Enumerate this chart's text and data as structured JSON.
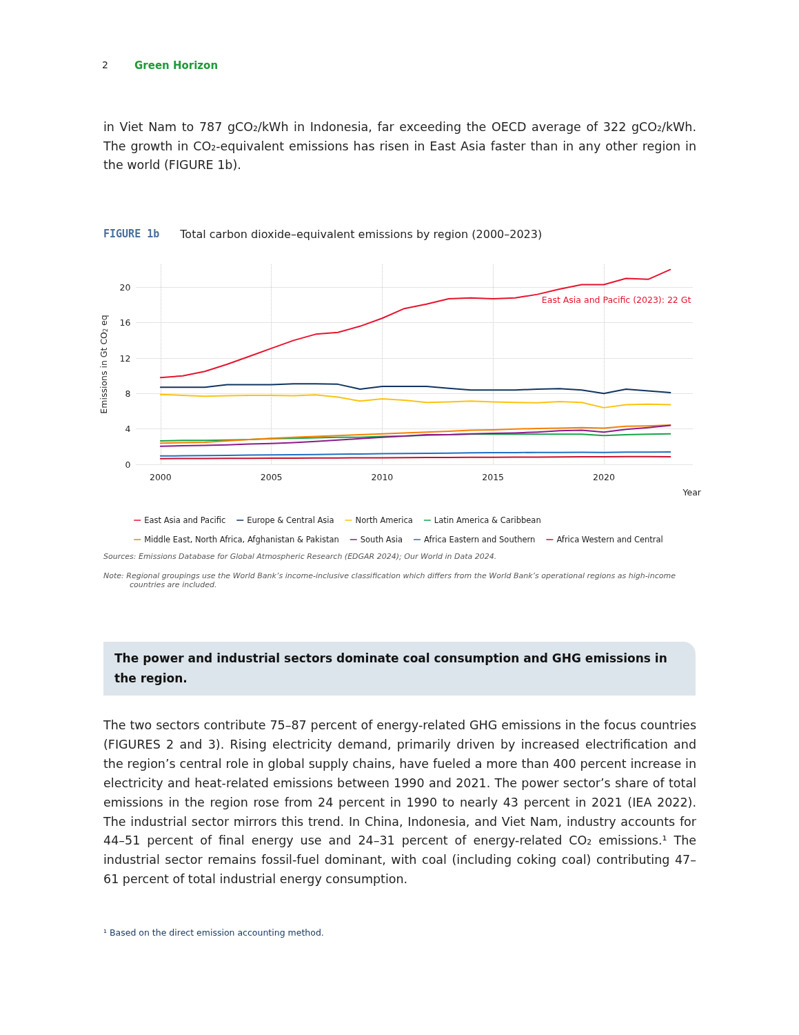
{
  "chart_data": {
    "type": "line",
    "subtitle": "FIGURE 1b",
    "title": "Total carbon dioxide–equivalent emissions by region (2000–2023)",
    "xlabel": "Year",
    "ylabel": "Emissions in Gt CO$_{2}$ eq",
    "x": [
      2000,
      2001,
      2002,
      2003,
      2004,
      2005,
      2006,
      2007,
      2008,
      2009,
      2010,
      2011,
      2012,
      2013,
      2014,
      2015,
      2016,
      2017,
      2018,
      2019,
      2020,
      2021,
      2022,
      2023
    ],
    "xlim": [
      1998.9,
      2024
    ],
    "xticks": [
      2000,
      2005,
      2010,
      2015,
      2020
    ],
    "ylim": [
      0,
      22.6
    ],
    "yticks": [
      0,
      4,
      8,
      12,
      16,
      20
    ],
    "grid": true,
    "legend": "bottom",
    "marker": "none",
    "line_style": "solid",
    "series": [
      {
        "name": "East Asia and Pacific",
        "color": "#e8112d",
        "values": [
          9.8,
          10.0,
          10.5,
          11.3,
          12.2,
          13.1,
          14.0,
          14.7,
          14.9,
          15.6,
          16.5,
          17.6,
          18.1,
          18.7,
          18.8,
          18.7,
          18.8,
          19.2,
          19.8,
          20.3,
          20.3,
          21.0,
          20.9,
          22
        ]
      },
      {
        "name": "Europe & Central Asia",
        "color": "#0f3460",
        "values": [
          8.7,
          8.7,
          8.7,
          9.0,
          9.0,
          9.0,
          9.1,
          9.1,
          9.05,
          8.5,
          8.8,
          8.8,
          8.8,
          8.6,
          8.4,
          8.4,
          8.4,
          8.5,
          8.55,
          8.4,
          8.0,
          8.5,
          8.3,
          8.1
        ]
      },
      {
        "name": "North America",
        "color": "#fdc20e",
        "values": [
          7.9,
          7.8,
          7.7,
          7.75,
          7.8,
          7.8,
          7.75,
          7.85,
          7.6,
          7.15,
          7.4,
          7.25,
          7.0,
          7.05,
          7.15,
          7.05,
          7.0,
          6.95,
          7.1,
          7.0,
          6.4,
          6.75,
          6.8,
          6.75
        ]
      },
      {
        "name": "Latin America & Caribbean",
        "color": "#16a34a",
        "values": [
          2.65,
          2.7,
          2.7,
          2.75,
          2.8,
          2.9,
          2.95,
          3.0,
          3.05,
          3.05,
          3.15,
          3.2,
          3.3,
          3.35,
          3.4,
          3.4,
          3.4,
          3.4,
          3.4,
          3.4,
          3.25,
          3.35,
          3.4,
          3.45
        ]
      },
      {
        "name": "Middle East, North Africa, Afghanistan & Pakistan",
        "color": "#f77f00",
        "values": [
          2.4,
          2.45,
          2.5,
          2.65,
          2.8,
          2.95,
          3.05,
          3.15,
          3.25,
          3.35,
          3.45,
          3.55,
          3.65,
          3.75,
          3.85,
          3.9,
          4.0,
          4.05,
          4.1,
          4.15,
          4.1,
          4.3,
          4.35,
          4.45
        ]
      },
      {
        "name": "South Asia",
        "color": "#8b1a8b",
        "values": [
          2.05,
          2.1,
          2.15,
          2.2,
          2.3,
          2.35,
          2.45,
          2.6,
          2.75,
          2.9,
          3.05,
          3.2,
          3.35,
          3.35,
          3.45,
          3.5,
          3.55,
          3.65,
          3.8,
          3.85,
          3.65,
          3.95,
          4.15,
          4.4
        ]
      },
      {
        "name": "Africa Eastern and Southern",
        "color": "#1f6fc5",
        "values": [
          0.95,
          0.97,
          1.0,
          1.02,
          1.05,
          1.08,
          1.1,
          1.12,
          1.15,
          1.17,
          1.2,
          1.22,
          1.25,
          1.27,
          1.3,
          1.32,
          1.33,
          1.34,
          1.35,
          1.36,
          1.35,
          1.38,
          1.39,
          1.4
        ]
      },
      {
        "name": "Africa Western and Central",
        "color": "#c8102e",
        "values": [
          0.65,
          0.66,
          0.67,
          0.68,
          0.69,
          0.7,
          0.71,
          0.72,
          0.73,
          0.74,
          0.75,
          0.76,
          0.77,
          0.78,
          0.79,
          0.8,
          0.81,
          0.82,
          0.83,
          0.85,
          0.86,
          0.87,
          0.87,
          0.86
        ]
      }
    ],
    "annotations": [
      "2",
      "Green Horizon",
      "in Viet Nam to 787 gCO₂/kWh in Indonesia, far exceeding the OECD average of 322 gCO₂/kWh. The growth in CO₂-equivalent emissions has risen in East Asia faster than in any other region in the world (FIGURE 1b).",
      {
        "text": "East Asia and Pacific (2023): 22 Gt",
        "x": 2023,
        "y": 22
      },
      "Sources:  Emissions Database for Global Atmospheric Research (EDGAR 2024); Our World in Data 2024.",
      "Note:  Regional groupings use the World Bank’s income-inclusive classification which differs from the World Bank’s operational regions as high-income countries are included.",
      "The power and industrial sectors dominate coal consumption and GHG emissions in the region.",
      "The two sectors contribute 75–87 percent of energy-related GHG emissions in the focus countries (FIGURES 2 and 3). Rising electricity demand, primarily driven by increased electrification and the region’s central role in global supply chains, have fueled a more than 400 percent increase in electricity and heat-related emissions between 1990 and 2021. The power sector’s share of total emissions in the region rose from 24 percent in 1990 to nearly 43 percent in 2021 (IEA 2022). The industrial sector mirrors this trend. In China, Indonesia, and Viet Nam, industry accounts for 44–51 percent of final energy use and 24–31 percent of energy-related CO₂ emissions.¹ The industrial sector remains fossil-fuel dominant, with coal (including coking coal) contributing 47–61 percent of total industrial energy consumption.",
      "¹   Based on the direct emission accounting method."
    ]
  }
}
